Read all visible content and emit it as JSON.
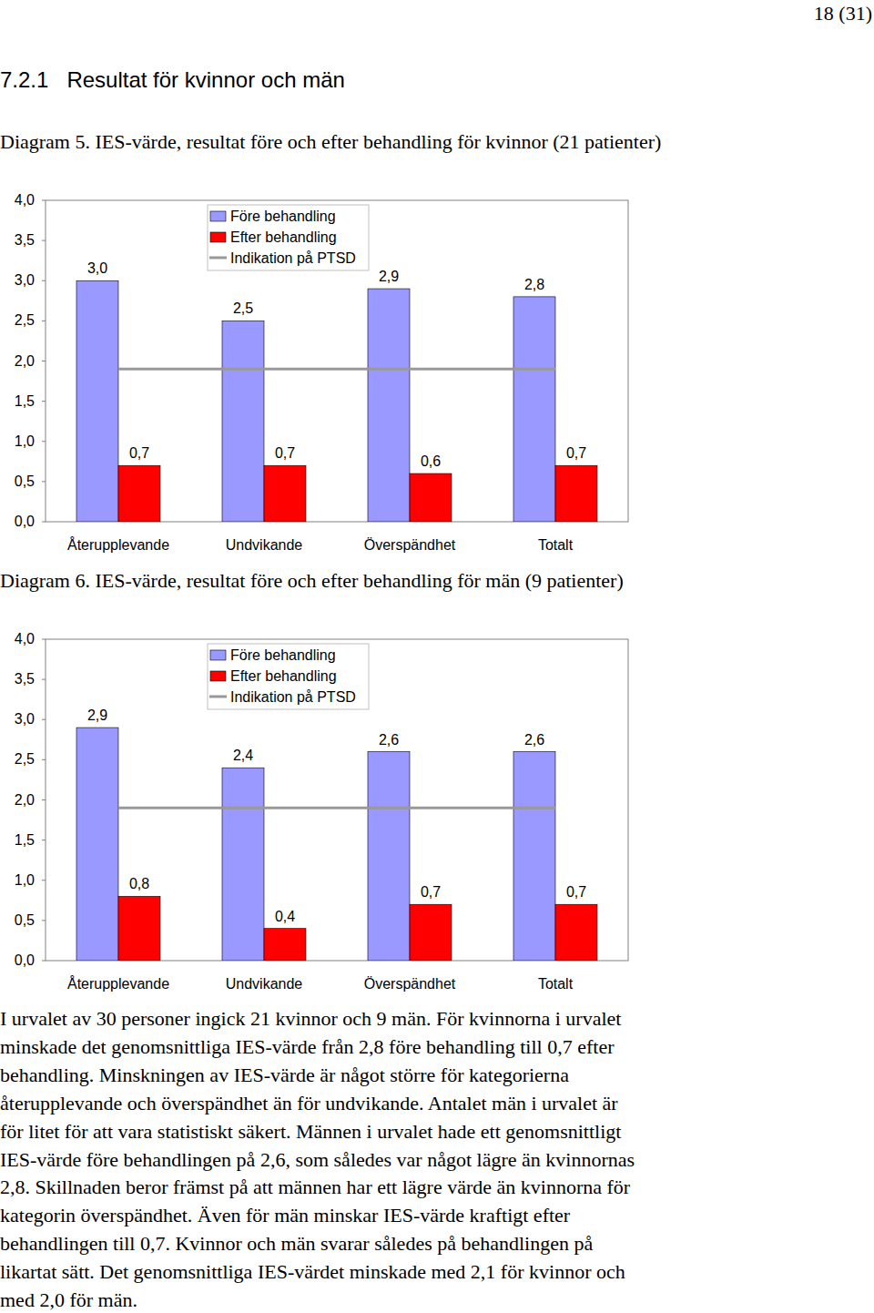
{
  "page_number": "18 (31)",
  "heading": "7.2.1   Resultat för kvinnor och män",
  "chart_data": [
    {
      "type": "bar",
      "title": "Diagram 5. IES-värde, resultat före och efter behandling för kvinnor (21 patienter)",
      "categories": [
        "Återupplevande",
        "Undvikande",
        "Överspändhet",
        "Totalt"
      ],
      "series": [
        {
          "name": "Före behandling",
          "color": "#9999ff",
          "values": [
            3.0,
            2.5,
            2.9,
            2.8
          ],
          "value_labels": [
            "3,0",
            "2,5",
            "2,9",
            "2,8"
          ]
        },
        {
          "name": "Efter behandling",
          "color": "#ff0000",
          "values": [
            0.7,
            0.7,
            0.6,
            0.7
          ],
          "value_labels": [
            "0,7",
            "0,7",
            "0,6",
            "0,7"
          ]
        },
        {
          "name": "Indikation på PTSD",
          "type": "line",
          "color": "#999999",
          "data_labels": false,
          "values": [
            1.9,
            1.9,
            1.9,
            1.9
          ]
        }
      ],
      "ylim": [
        0,
        4
      ],
      "yticks": [
        {
          "value": 0,
          "label": "0,0"
        },
        {
          "value": 0.5,
          "label": "0,5"
        },
        {
          "value": 1,
          "label": "1,0"
        },
        {
          "value": 1.5,
          "label": "1,5"
        },
        {
          "value": 2,
          "label": "2,0"
        },
        {
          "value": 2.5,
          "label": "2,5"
        },
        {
          "value": 3,
          "label": "3,0"
        },
        {
          "value": 3.5,
          "label": "3,5"
        },
        {
          "value": 4,
          "label": "4,0"
        }
      ],
      "grid": false,
      "data_labels": true,
      "legend": "top"
    },
    {
      "type": "bar",
      "title": "Diagram 6. IES-värde, resultat före och efter behandling för män (9 patienter)",
      "categories": [
        "Återupplevande",
        "Undvikande",
        "Överspändhet",
        "Totalt"
      ],
      "series": [
        {
          "name": "Före behandling",
          "color": "#9999ff",
          "values": [
            2.9,
            2.4,
            2.6,
            2.6
          ],
          "value_labels": [
            "2,9",
            "2,4",
            "2,6",
            "2,6"
          ]
        },
        {
          "name": "Efter behandling",
          "color": "#ff0000",
          "values": [
            0.8,
            0.4,
            0.7,
            0.7
          ],
          "value_labels": [
            "0,8",
            "0,4",
            "0,7",
            "0,7"
          ]
        },
        {
          "name": "Indikation på PTSD",
          "type": "line",
          "color": "#999999",
          "data_labels": false,
          "values": [
            1.9,
            1.9,
            1.9,
            1.9
          ]
        }
      ],
      "ylim": [
        0,
        4
      ],
      "yticks": [
        {
          "value": 0,
          "label": "0,0"
        },
        {
          "value": 0.5,
          "label": "0,5"
        },
        {
          "value": 1,
          "label": "1,0"
        },
        {
          "value": 1.5,
          "label": "1,5"
        },
        {
          "value": 2,
          "label": "2,0"
        },
        {
          "value": 2.5,
          "label": "2,5"
        },
        {
          "value": 3,
          "label": "3,0"
        },
        {
          "value": 3.5,
          "label": "3,5"
        },
        {
          "value": 4,
          "label": "4,0"
        }
      ],
      "grid": false,
      "data_labels": true,
      "legend": "top"
    }
  ],
  "paragraph_lines": [
    "I urvalet av 30 personer ingick 21 kvinnor och 9 män. För kvinnorna i urvalet",
    "minskade det genomsnittliga IES-värde från 2,8 före behandling till 0,7 efter",
    "behandling. Minskningen av IES-värde är något större för kategorierna",
    "återupplevande och överspändhet än för undvikande. Antalet män i urvalet är",
    "för litet för att vara statistiskt säkert. Männen i urvalet hade ett genomsnittligt",
    "IES-värde före behandlingen på 2,6, som således var något lägre än kvinnornas",
    "2,8. Skillnaden beror främst på att männen har ett lägre värde än kvinnorna för",
    "kategorin överspändhet. Även för män minskar IES-värde kraftigt efter",
    "behandlingen till 0,7. Kvinnor och män svarar således på behandlingen på",
    "likartat sätt. Det genomsnittliga IES-värdet minskade med 2,1 för kvinnor och",
    "med 2,0 för män."
  ]
}
